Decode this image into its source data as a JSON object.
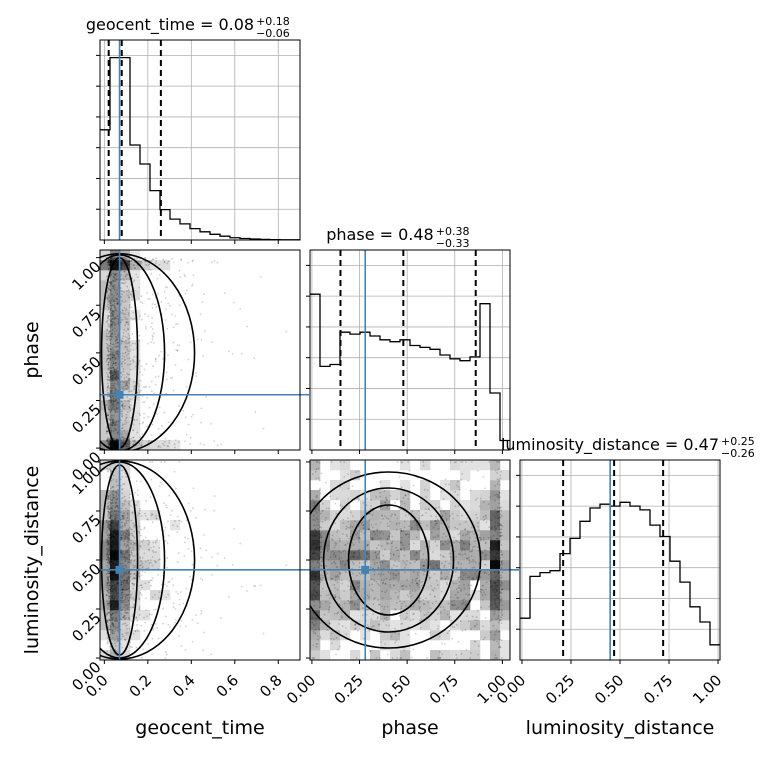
{
  "chart_data": {
    "type": "corner",
    "parameters": [
      "geocent_time",
      "phase",
      "luminosity_distance"
    ],
    "axis_labels": [
      "geocent_time",
      "phase",
      "luminosity_distance"
    ],
    "ranges": [
      [
        -0.02,
        0.9
      ],
      [
        -0.01,
        1.04
      ],
      [
        -0.01,
        1.01
      ]
    ],
    "ticks": [
      [
        "0.0",
        "0.2",
        "0.4",
        "0.6",
        "0.8"
      ],
      [
        "0.00",
        "0.25",
        "0.50",
        "0.75",
        "1.00"
      ],
      [
        "0.00",
        "0.25",
        "0.50",
        "0.75",
        "1.00"
      ]
    ],
    "titles": [
      {
        "param": "geocent_time",
        "median": "0.08",
        "plus": "+0.18",
        "minus": "−0.06"
      },
      {
        "param": "phase",
        "median": "0.48",
        "plus": "+0.38",
        "minus": "−0.33"
      },
      {
        "param": "luminosity_distance",
        "median": "0.47",
        "plus": "+0.25",
        "minus": "−0.26"
      }
    ],
    "truths": [
      0.07,
      0.28,
      0.45
    ],
    "quantiles": [
      [
        0.02,
        0.08,
        0.26
      ],
      [
        0.15,
        0.48,
        0.86
      ],
      [
        0.21,
        0.47,
        0.72
      ]
    ],
    "histograms": [
      {
        "edges_min": -0.02,
        "edges_max": 0.9,
        "heights": [
          0.58,
          0.96,
          0.96,
          0.5,
          0.4,
          0.26,
          0.16,
          0.11,
          0.085,
          0.06,
          0.043,
          0.03,
          0.02,
          0.012,
          0.008,
          0.005,
          0.003,
          0.002,
          0.001,
          0.001
        ]
      },
      {
        "edges_min": -0.01,
        "edges_max": 1.04,
        "heights": [
          0.82,
          0.44,
          0.45,
          0.62,
          0.61,
          0.62,
          0.6,
          0.58,
          0.57,
          0.58,
          0.55,
          0.54,
          0.53,
          0.5,
          0.48,
          0.47,
          0.49,
          0.77,
          0.3,
          0.05
        ]
      },
      {
        "edges_min": -0.01,
        "edges_max": 1.01,
        "heights": [
          0.22,
          0.44,
          0.46,
          0.47,
          0.56,
          0.64,
          0.73,
          0.8,
          0.82,
          0.81,
          0.83,
          0.81,
          0.79,
          0.71,
          0.65,
          0.52,
          0.41,
          0.28,
          0.2,
          0.08
        ]
      }
    ],
    "colors": {
      "truth": "#4682b4",
      "contour": "#000000",
      "grid": "#b0b0b0",
      "points": "#000000"
    },
    "grid": true
  }
}
